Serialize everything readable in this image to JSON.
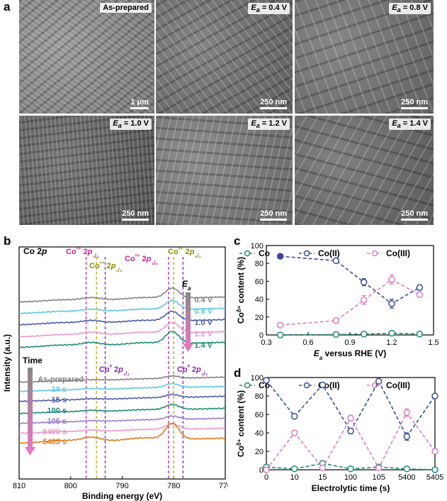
{
  "panel_a": {
    "label": "a",
    "images": [
      {
        "label": "As-prepared",
        "ea": "",
        "scale": "1 μm",
        "tone": "#8a8a8a"
      },
      {
        "label": "",
        "ea": "0.4 V",
        "scale": "250 nm",
        "tone": "#6f6f6f"
      },
      {
        "label": "",
        "ea": "0.8 V",
        "scale": "250 nm",
        "tone": "#727272"
      },
      {
        "label": "",
        "ea": "1.0 V",
        "scale": "250 nm",
        "tone": "#5f5f5f"
      },
      {
        "label": "",
        "ea": "1.2 V",
        "scale": "250 nm",
        "tone": "#7a7a7a"
      },
      {
        "label": "",
        "ea": "1.4 V",
        "scale": "250 nm",
        "tone": "#6a6a6a"
      }
    ],
    "ea_symbol": "E",
    "ea_sub": "a"
  },
  "chart_data": [
    {
      "panel": "b",
      "type": "line",
      "title": "Co 2p",
      "xlabel": "Binding energy (eV)",
      "ylabel": "Intensity (a.u.)",
      "xlim": [
        810,
        770
      ],
      "xticks": [
        810,
        800,
        790,
        780,
        770
      ],
      "peak_lines": [
        {
          "x": 797,
          "color": "#cc2288"
        },
        {
          "x": 795,
          "color": "#b5a400"
        },
        {
          "x": 793.3,
          "color": "#8a22b0"
        },
        {
          "x": 781,
          "color": "#cc2288"
        },
        {
          "x": 780,
          "color": "#b5a400"
        },
        {
          "x": 778.2,
          "color": "#8a22b0"
        }
      ],
      "annotations": [
        {
          "text": "Co²⁺ 2p₁/₂",
          "color": "#cc2288"
        },
        {
          "text": "Co³⁺ 2p₁/₂",
          "color": "#8a8a00"
        },
        {
          "text": "Co²⁺ 2p₃/₂",
          "color": "#cc2288"
        },
        {
          "text": "Co³⁺ 2p₃/₂",
          "color": "#8a8a00"
        },
        {
          "text": "Co⁰ 2p₁/₂",
          "color": "#8a22b0"
        },
        {
          "text": "Co⁰ 2p₃/₂",
          "color": "#8a22b0"
        }
      ],
      "ea_arrow_label": "E",
      "time_arrow_label": "Time",
      "series": [
        {
          "name": "0.4 V",
          "color": "#808080"
        },
        {
          "name": "0.8 V",
          "color": "#5bc8e0"
        },
        {
          "name": "1.0 V",
          "color": "#4a5aa8"
        },
        {
          "name": "1.2 V",
          "color": "#e898c8"
        },
        {
          "name": "1.4 V",
          "color": "#1a8a78"
        },
        {
          "name": "As-prepared",
          "color": "#808080"
        },
        {
          "name": "10 s",
          "color": "#5bc8e0"
        },
        {
          "name": "15 s",
          "color": "#4a5aa8"
        },
        {
          "name": "100 s",
          "color": "#1a8a78"
        },
        {
          "name": "105 s",
          "color": "#9a7ac8"
        },
        {
          "name": "5400 s",
          "color": "#e898c8"
        },
        {
          "name": "5405 s",
          "color": "#e07818"
        }
      ]
    },
    {
      "panel": "c",
      "type": "line",
      "xlabel": "E versus RHE (V)",
      "ylabel": "Co content (%)",
      "xlim": [
        0.3,
        1.5
      ],
      "ylim": [
        0,
        100
      ],
      "xticks": [
        0.3,
        0.6,
        0.9,
        1.2,
        1.5
      ],
      "yticks": [
        0,
        20,
        40,
        60,
        80,
        100
      ],
      "x": [
        0.4,
        0.8,
        1.0,
        1.2,
        1.4
      ],
      "series": [
        {
          "name": "Co",
          "color": "#1a8a78",
          "values": [
            0,
            0.5,
            1,
            2,
            1
          ]
        },
        {
          "name": "Co(II)",
          "color": "#3a4a98",
          "values": [
            88,
            83,
            59,
            35,
            53
          ],
          "err": [
            0,
            0,
            4,
            5,
            3
          ]
        },
        {
          "name": "Co(III)",
          "color": "#e07ac0",
          "values": [
            11,
            16,
            39,
            62,
            45
          ],
          "err": [
            0,
            0,
            5,
            5,
            3
          ]
        }
      ]
    },
    {
      "panel": "d",
      "type": "line",
      "xlabel": "Electrolytic time (s)",
      "ylabel": "Co content (%)",
      "ylim": [
        0,
        100
      ],
      "yticks": [
        0,
        20,
        40,
        60,
        80,
        100
      ],
      "categories": [
        "0",
        "10",
        "15",
        "100",
        "105",
        "5400",
        "5405"
      ],
      "series": [
        {
          "name": "Co",
          "color": "#1a8a78",
          "values": [
            3,
            1,
            7,
            1,
            3,
            1,
            0
          ]
        },
        {
          "name": "Co(II)",
          "color": "#3a4a98",
          "values": [
            97,
            58,
            92,
            42,
            96,
            36,
            80
          ],
          "err": [
            0,
            2,
            2,
            3,
            2,
            4,
            2
          ]
        },
        {
          "name": "Co(III)",
          "color": "#e07ac0",
          "values": [
            0,
            40,
            2,
            56,
            2,
            62,
            20
          ],
          "err": [
            0,
            2,
            2,
            3,
            2,
            4,
            2
          ]
        }
      ]
    }
  ]
}
